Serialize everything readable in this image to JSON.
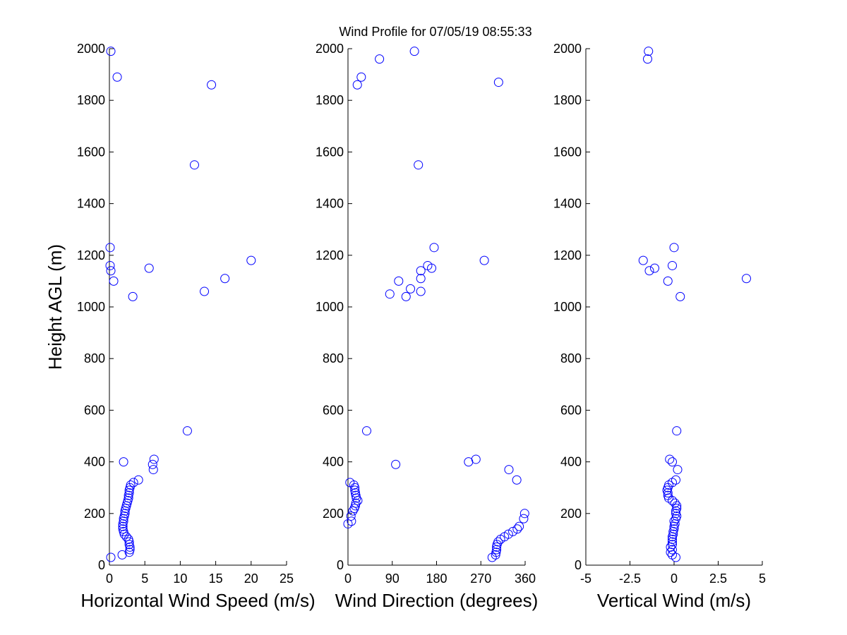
{
  "chart_data": {
    "type": "scatter",
    "title": "Wind Profile for  07/05/19 08:55:33",
    "ylabel": "Height AGL (m)",
    "ylim": [
      0,
      2000
    ],
    "yticks": [
      "0",
      "200",
      "400",
      "600",
      "800",
      "1000",
      "1200",
      "1400",
      "1600",
      "1800",
      "2000"
    ],
    "marker_color": "#0000ff",
    "panels": [
      {
        "xlabel": "Horizontal Wind Speed (m/s)",
        "xlim": [
          0,
          25
        ],
        "xticks": [
          0,
          5,
          10,
          15,
          20,
          25
        ],
        "xtick_labels": [
          "0",
          "5",
          "10",
          "15",
          "20",
          "25"
        ],
        "points": [
          [
            0.2,
            30
          ],
          [
            1.8,
            40
          ],
          [
            2.8,
            50
          ],
          [
            2.9,
            60
          ],
          [
            2.9,
            70
          ],
          [
            2.8,
            80
          ],
          [
            2.8,
            90
          ],
          [
            2.7,
            100
          ],
          [
            2.4,
            110
          ],
          [
            2.1,
            120
          ],
          [
            2.0,
            130
          ],
          [
            1.9,
            140
          ],
          [
            1.9,
            150
          ],
          [
            1.9,
            160
          ],
          [
            2.0,
            170
          ],
          [
            2.0,
            180
          ],
          [
            2.1,
            190
          ],
          [
            2.2,
            200
          ],
          [
            2.2,
            210
          ],
          [
            2.3,
            220
          ],
          [
            2.4,
            230
          ],
          [
            2.5,
            240
          ],
          [
            2.6,
            250
          ],
          [
            2.7,
            260
          ],
          [
            2.7,
            270
          ],
          [
            2.8,
            280
          ],
          [
            2.8,
            290
          ],
          [
            2.9,
            300
          ],
          [
            3.0,
            310
          ],
          [
            3.4,
            320
          ],
          [
            4.1,
            330
          ],
          [
            6.2,
            370
          ],
          [
            6.1,
            390
          ],
          [
            2.0,
            400
          ],
          [
            6.3,
            410
          ],
          [
            11.0,
            520
          ],
          [
            3.3,
            1040
          ],
          [
            13.4,
            1060
          ],
          [
            0.6,
            1100
          ],
          [
            16.3,
            1110
          ],
          [
            0.2,
            1140
          ],
          [
            5.6,
            1150
          ],
          [
            0.1,
            1160
          ],
          [
            20.0,
            1180
          ],
          [
            0.1,
            1230
          ],
          [
            12.0,
            1550
          ],
          [
            14.4,
            1860
          ],
          [
            1.1,
            1890
          ],
          [
            0.2,
            1990
          ]
        ]
      },
      {
        "xlabel": "Wind Direction (degrees)",
        "xlim": [
          0,
          360
        ],
        "xticks": [
          0,
          90,
          180,
          270,
          360
        ],
        "xtick_labels": [
          "0",
          "90",
          "180",
          "270",
          "360"
        ],
        "points": [
          [
            293,
            30
          ],
          [
            300,
            40
          ],
          [
            301,
            50
          ],
          [
            302,
            60
          ],
          [
            302,
            70
          ],
          [
            303,
            80
          ],
          [
            305,
            90
          ],
          [
            310,
            100
          ],
          [
            318,
            110
          ],
          [
            326,
            120
          ],
          [
            335,
            130
          ],
          [
            344,
            140
          ],
          [
            348,
            150
          ],
          [
            0,
            160
          ],
          [
            7,
            170
          ],
          [
            357,
            180
          ],
          [
            6,
            190
          ],
          [
            359,
            200
          ],
          [
            10,
            210
          ],
          [
            13,
            220
          ],
          [
            15,
            230
          ],
          [
            16,
            240
          ],
          [
            20,
            250
          ],
          [
            17,
            260
          ],
          [
            16,
            270
          ],
          [
            15,
            280
          ],
          [
            14,
            290
          ],
          [
            14,
            300
          ],
          [
            12,
            310
          ],
          [
            4,
            320
          ],
          [
            343,
            330
          ],
          [
            327,
            370
          ],
          [
            97,
            390
          ],
          [
            245,
            400
          ],
          [
            260,
            410
          ],
          [
            38,
            520
          ],
          [
            118,
            1040
          ],
          [
            85,
            1050
          ],
          [
            148,
            1060
          ],
          [
            127,
            1070
          ],
          [
            103,
            1100
          ],
          [
            148,
            1110
          ],
          [
            148,
            1140
          ],
          [
            170,
            1150
          ],
          [
            162,
            1160
          ],
          [
            277,
            1180
          ],
          [
            175,
            1230
          ],
          [
            143,
            1550
          ],
          [
            19,
            1860
          ],
          [
            306,
            1870
          ],
          [
            27,
            1890
          ],
          [
            64,
            1960
          ],
          [
            135,
            1990
          ]
        ]
      },
      {
        "xlabel": "Vertical Wind (m/s)",
        "xlim": [
          -5,
          5
        ],
        "xticks": [
          -5,
          -2.5,
          0,
          2.5,
          5
        ],
        "xtick_labels": [
          "-5",
          "-2.5",
          "0",
          "2.5",
          "5"
        ],
        "points": [
          [
            0.1,
            30
          ],
          [
            -0.1,
            40
          ],
          [
            -0.2,
            50
          ],
          [
            -0.1,
            60
          ],
          [
            -0.2,
            70
          ],
          [
            -0.1,
            80
          ],
          [
            -0.1,
            90
          ],
          [
            -0.1,
            100
          ],
          [
            -0.1,
            110
          ],
          [
            -0.05,
            120
          ],
          [
            -0.05,
            130
          ],
          [
            0,
            140
          ],
          [
            0,
            150
          ],
          [
            0.05,
            160
          ],
          [
            0,
            170
          ],
          [
            0.1,
            180
          ],
          [
            0.15,
            190
          ],
          [
            0.1,
            200
          ],
          [
            0.1,
            210
          ],
          [
            0.15,
            220
          ],
          [
            0.15,
            230
          ],
          [
            0.05,
            240
          ],
          [
            -0.1,
            250
          ],
          [
            -0.3,
            260
          ],
          [
            -0.35,
            270
          ],
          [
            -0.35,
            280
          ],
          [
            -0.4,
            290
          ],
          [
            -0.35,
            300
          ],
          [
            -0.3,
            310
          ],
          [
            -0.1,
            320
          ],
          [
            0.1,
            330
          ],
          [
            0.2,
            370
          ],
          [
            -0.1,
            400
          ],
          [
            -0.25,
            410
          ],
          [
            0.15,
            520
          ],
          [
            0.35,
            1040
          ],
          [
            -0.35,
            1100
          ],
          [
            4.1,
            1110
          ],
          [
            -1.4,
            1140
          ],
          [
            -1.1,
            1150
          ],
          [
            -0.1,
            1160
          ],
          [
            -1.75,
            1180
          ],
          [
            0,
            1230
          ],
          [
            -1.5,
            1960
          ],
          [
            -1.45,
            1990
          ]
        ]
      }
    ]
  }
}
